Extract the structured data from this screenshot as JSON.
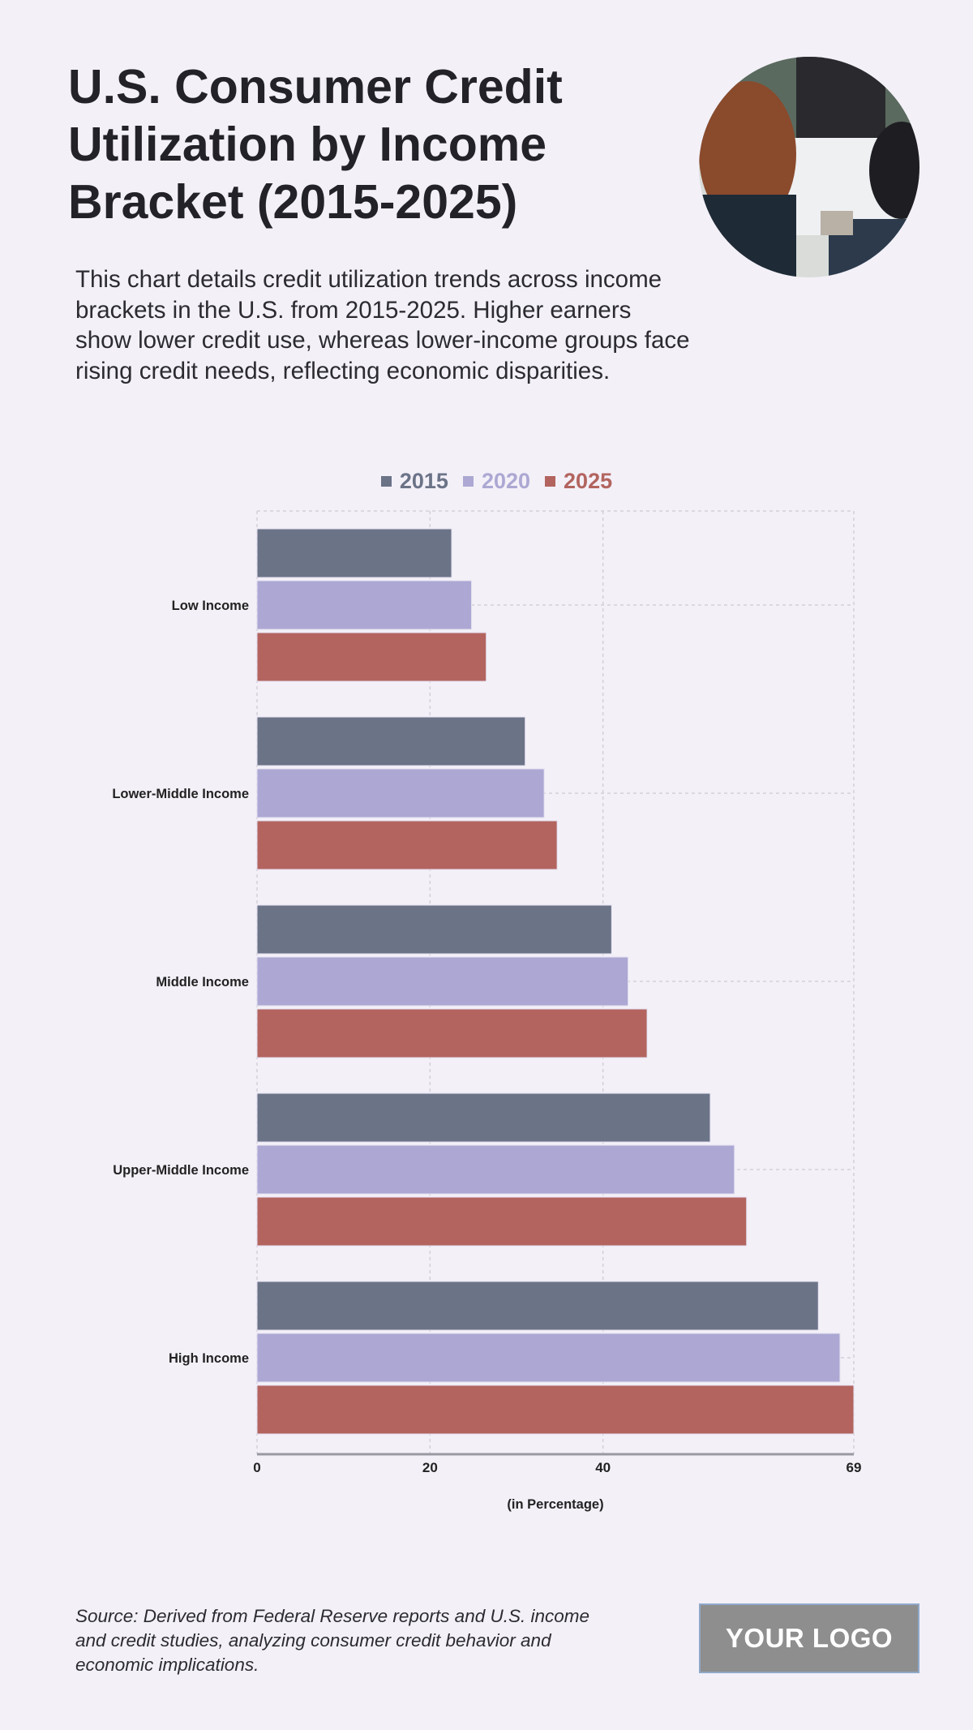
{
  "header": {
    "title": "U.S. Consumer Credit Utilization by Income Bracket (2015-2025)",
    "description": "This chart details credit utilization trends across income brackets in the U.S. from 2015-2025. Higher earners show lower credit use, whereas lower-income groups face rising credit needs, reflecting economic disparities."
  },
  "footer": {
    "source": "Source: Derived from Federal Reserve reports and U.S. income and credit studies, analyzing consumer credit behavior and economic implications.",
    "logo": "YOUR LOGO"
  },
  "chart_data": {
    "type": "bar",
    "orientation": "horizontal",
    "categories": [
      "Low Income",
      "Lower-Middle Income",
      "Middle Income",
      "Upper-Middle Income",
      "High Income"
    ],
    "series": [
      {
        "name": "2015",
        "color": "#6b7387",
        "values": [
          22.5,
          31.0,
          41.0,
          52.4,
          64.9
        ]
      },
      {
        "name": "2020",
        "color": "#aca8d3",
        "values": [
          24.8,
          33.2,
          42.9,
          55.2,
          67.4
        ]
      },
      {
        "name": "2025",
        "color": "#b3645f",
        "values": [
          26.5,
          34.7,
          45.1,
          56.6,
          69.0
        ]
      }
    ],
    "xlabel": "(in Percentage)",
    "ylabel": "",
    "xlim": [
      0,
      69
    ],
    "xticks": [
      0,
      20,
      40,
      69
    ],
    "grid": true,
    "legend": "top-center"
  }
}
